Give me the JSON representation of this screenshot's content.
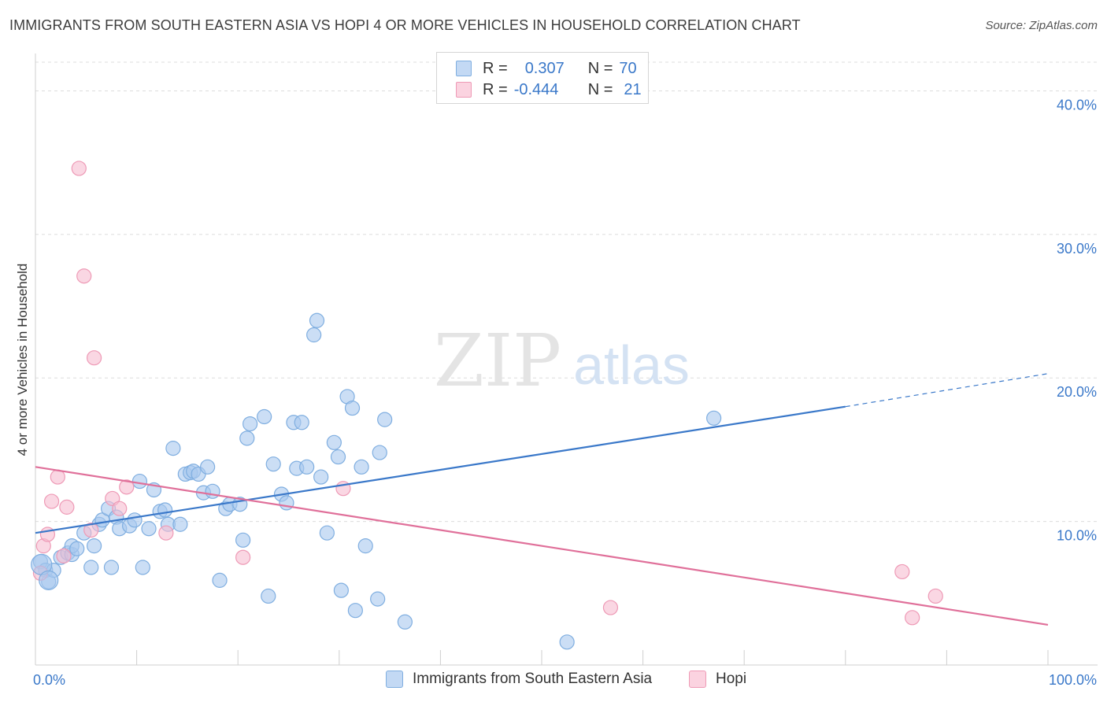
{
  "title": "IMMIGRANTS FROM SOUTH EASTERN ASIA VS HOPI 4 OR MORE VEHICLES IN HOUSEHOLD CORRELATION CHART",
  "source": "Source: ZipAtlas.com",
  "watermark": {
    "zip": "ZIP",
    "atlas": "atlas"
  },
  "legend": {
    "rows": [
      {
        "r_label": "R =",
        "r_value": "0.307",
        "n_label": "N =",
        "n_value": "70"
      },
      {
        "r_label": "R =",
        "r_value": "-0.444",
        "n_label": "N =",
        "n_value": "21"
      }
    ]
  },
  "bottom_legend": {
    "series1": "Immigrants from South Eastern Asia",
    "series2": "Hopi"
  },
  "colors": {
    "blue_fill": "#a9c8ee",
    "blue_stroke": "#7faee0",
    "blue_line": "#3a78c9",
    "pink_fill": "#f6bdd0",
    "pink_stroke": "#ee9ab6",
    "pink_line": "#e0709a",
    "tick_text": "#3a78c9",
    "grid": "#dcdcdc"
  },
  "chart_data": {
    "type": "scatter",
    "xlabel": "",
    "ylabel": "4 or more Vehicles in Household",
    "xlim": [
      0,
      100
    ],
    "ylim": [
      0,
      42
    ],
    "x_tick_labels": [
      "0.0%",
      "100.0%"
    ],
    "y_ticks": [
      10,
      20,
      30,
      40
    ],
    "y_tick_labels": [
      "10.0%",
      "20.0%",
      "30.0%",
      "40.0%"
    ],
    "grid": true,
    "series": [
      {
        "name": "Immigrants from South Eastern Asia",
        "points": [
          [
            0.5,
            7.2
          ],
          [
            1.0,
            6.6
          ],
          [
            1.3,
            5.8
          ],
          [
            1.8,
            6.6
          ],
          [
            2.5,
            7.5
          ],
          [
            3.2,
            7.8
          ],
          [
            3.6,
            7.7
          ],
          [
            3.6,
            8.3
          ],
          [
            4.1,
            8.1
          ],
          [
            4.8,
            9.2
          ],
          [
            5.5,
            6.8
          ],
          [
            5.8,
            8.3
          ],
          [
            6.3,
            9.8
          ],
          [
            6.6,
            10.1
          ],
          [
            7.2,
            10.9
          ],
          [
            7.5,
            6.8
          ],
          [
            8.0,
            10.3
          ],
          [
            8.3,
            9.5
          ],
          [
            9.3,
            9.7
          ],
          [
            9.8,
            10.1
          ],
          [
            10.3,
            12.8
          ],
          [
            10.6,
            6.8
          ],
          [
            11.2,
            9.5
          ],
          [
            11.7,
            12.2
          ],
          [
            12.3,
            10.7
          ],
          [
            12.8,
            10.8
          ],
          [
            13.1,
            9.8
          ],
          [
            13.6,
            15.1
          ],
          [
            14.3,
            9.8
          ],
          [
            14.8,
            13.3
          ],
          [
            15.3,
            13.4
          ],
          [
            15.6,
            13.5
          ],
          [
            16.1,
            13.3
          ],
          [
            16.6,
            12.0
          ],
          [
            17.0,
            13.8
          ],
          [
            17.5,
            12.1
          ],
          [
            18.2,
            5.9
          ],
          [
            18.8,
            10.9
          ],
          [
            19.2,
            11.2
          ],
          [
            20.2,
            11.2
          ],
          [
            20.5,
            8.7
          ],
          [
            20.9,
            15.8
          ],
          [
            21.2,
            16.8
          ],
          [
            22.6,
            17.3
          ],
          [
            23.0,
            4.8
          ],
          [
            23.5,
            14.0
          ],
          [
            24.3,
            11.9
          ],
          [
            24.8,
            11.3
          ],
          [
            25.5,
            16.9
          ],
          [
            25.8,
            13.7
          ],
          [
            26.3,
            16.9
          ],
          [
            26.8,
            13.8
          ],
          [
            27.5,
            23.0
          ],
          [
            27.8,
            24.0
          ],
          [
            28.2,
            13.1
          ],
          [
            28.8,
            9.2
          ],
          [
            29.5,
            15.5
          ],
          [
            29.9,
            14.5
          ],
          [
            30.2,
            5.2
          ],
          [
            30.8,
            18.7
          ],
          [
            31.3,
            17.9
          ],
          [
            31.6,
            3.8
          ],
          [
            32.2,
            13.8
          ],
          [
            32.6,
            8.3
          ],
          [
            33.8,
            4.6
          ],
          [
            34.0,
            14.8
          ],
          [
            34.5,
            17.1
          ],
          [
            36.5,
            3.0
          ],
          [
            52.5,
            1.6
          ],
          [
            67.0,
            17.2
          ]
        ]
      },
      {
        "name": "Hopi",
        "points": [
          [
            0.5,
            6.4
          ],
          [
            0.8,
            8.3
          ],
          [
            1.2,
            9.1
          ],
          [
            1.6,
            11.4
          ],
          [
            2.2,
            13.1
          ],
          [
            2.8,
            7.6
          ],
          [
            3.1,
            11.0
          ],
          [
            4.3,
            34.6
          ],
          [
            4.8,
            27.1
          ],
          [
            5.5,
            9.4
          ],
          [
            5.8,
            21.4
          ],
          [
            7.6,
            11.6
          ],
          [
            8.3,
            10.9
          ],
          [
            9.0,
            12.4
          ],
          [
            12.9,
            9.2
          ],
          [
            20.5,
            7.5
          ],
          [
            30.4,
            12.3
          ],
          [
            56.8,
            4.0
          ],
          [
            85.6,
            6.5
          ],
          [
            86.6,
            3.3
          ],
          [
            88.9,
            4.8
          ]
        ]
      }
    ],
    "trendlines": [
      {
        "series": "Immigrants from South Eastern Asia",
        "x0": 0,
        "y0": 9.2,
        "x1": 80,
        "y1": 18.0,
        "dashed_to_x": 100,
        "dashed_to_y": 20.3
      },
      {
        "series": "Hopi",
        "x0": 0,
        "y0": 13.8,
        "x1": 100,
        "y1": 2.8
      }
    ]
  }
}
